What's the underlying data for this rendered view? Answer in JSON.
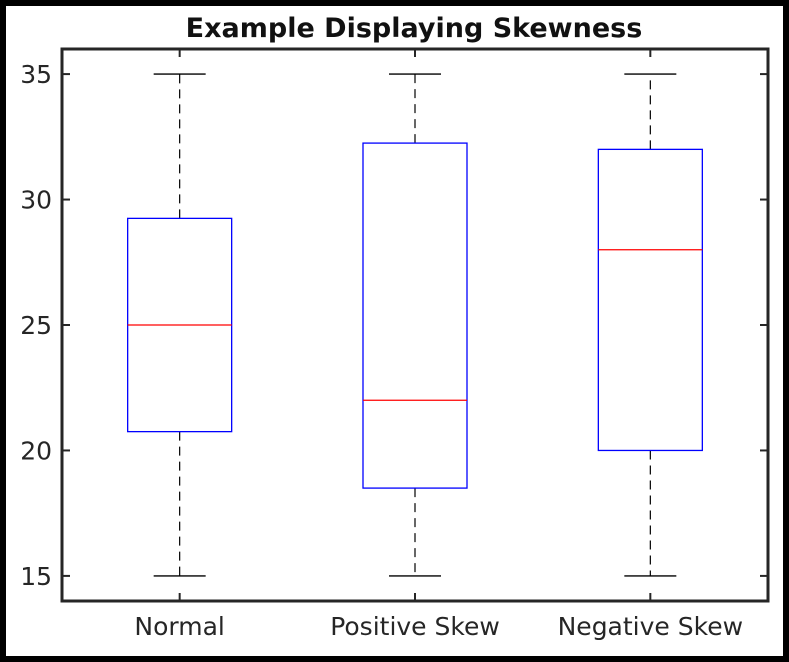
{
  "chart_data": {
    "type": "boxplot",
    "title": "Example Displaying Skewness",
    "xlabel": "",
    "ylabel": "",
    "categories": [
      "Normal",
      "Positive Skew",
      "Negative Skew"
    ],
    "boxes": [
      {
        "category": "Normal",
        "whisker_low": 15,
        "q1": 20.75,
        "median": 25,
        "q3": 29.25,
        "whisker_high": 35
      },
      {
        "category": "Positive Skew",
        "whisker_low": 15,
        "q1": 18.5,
        "median": 22,
        "q3": 32.25,
        "whisker_high": 35
      },
      {
        "category": "Negative Skew",
        "whisker_low": 15,
        "q1": 20,
        "median": 28,
        "q3": 32,
        "whisker_high": 35
      }
    ],
    "ylim": [
      14,
      36
    ],
    "yticks": [
      15,
      20,
      25,
      30,
      35
    ],
    "grid": false,
    "legend": "none",
    "colors": {
      "box": "#0000ff",
      "median": "#ff0000",
      "whisker": "#000000",
      "axes": "#262626"
    }
  }
}
